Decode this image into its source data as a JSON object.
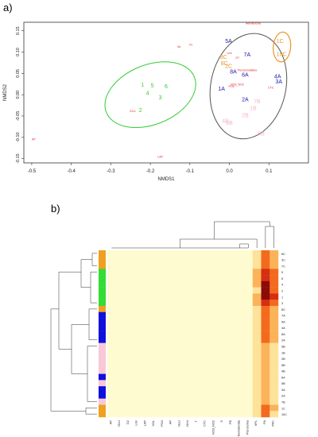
{
  "panel_labels": {
    "a": "a)",
    "b": "b)"
  },
  "chart_data": [
    {
      "type": "scatter",
      "panel": "a",
      "xlabel": "NMDS1",
      "ylabel": "NMDS2",
      "xlim": [
        -0.52,
        0.2
      ],
      "ylim": [
        -0.16,
        0.17
      ],
      "xticks": [
        "-0.5",
        "-0.4",
        "-0.3",
        "-0.2",
        "-0.1",
        "0.0",
        "0.1"
      ],
      "xtick_values": [
        -0.5,
        -0.4,
        -0.3,
        -0.2,
        -0.1,
        0.0,
        0.1
      ],
      "yticks": [
        "-0.15",
        "-0.10",
        "-0.05",
        "0.00",
        "0.05",
        "0.10",
        "0.15"
      ],
      "ytick_values": [
        -0.15,
        -0.1,
        -0.05,
        0.0,
        0.05,
        0.1,
        0.15
      ],
      "colors": {
        "green": "#33cc33",
        "blue": "#1a1aaa",
        "orange": "#e8962a",
        "pink": "#f5b5c8",
        "red": "#e02020",
        "ellipse_gray": "#555555"
      },
      "sites": [
        {
          "label": "1",
          "x": -0.22,
          "y": 0.025,
          "group": "green"
        },
        {
          "label": "5",
          "x": -0.195,
          "y": 0.023,
          "group": "green"
        },
        {
          "label": "6",
          "x": -0.16,
          "y": 0.021,
          "group": "green"
        },
        {
          "label": "4",
          "x": -0.207,
          "y": 0.005,
          "group": "green"
        },
        {
          "label": "3",
          "x": -0.175,
          "y": -0.005,
          "group": "green"
        },
        {
          "label": "2",
          "x": -0.225,
          "y": -0.035,
          "group": "green"
        },
        {
          "label": "5A",
          "x": -0.002,
          "y": 0.127,
          "group": "blue"
        },
        {
          "label": "7A",
          "x": 0.045,
          "y": 0.095,
          "group": "blue"
        },
        {
          "label": "8A",
          "x": 0.01,
          "y": 0.055,
          "group": "blue"
        },
        {
          "label": "6A",
          "x": 0.04,
          "y": 0.048,
          "group": "blue"
        },
        {
          "label": "1A",
          "x": -0.02,
          "y": 0.015,
          "group": "blue"
        },
        {
          "label": "4A",
          "x": 0.122,
          "y": 0.044,
          "group": "blue"
        },
        {
          "label": "3A",
          "x": 0.125,
          "y": 0.032,
          "group": "blue"
        },
        {
          "label": "2A",
          "x": 0.04,
          "y": -0.01,
          "group": "blue"
        },
        {
          "label": "1C",
          "x": 0.128,
          "y": 0.127,
          "group": "orange"
        },
        {
          "label": "10C",
          "x": 0.132,
          "y": 0.096,
          "group": "orange"
        },
        {
          "label": "3C",
          "x": -0.015,
          "y": 0.09,
          "group": "orange"
        },
        {
          "label": "8C",
          "x": -0.013,
          "y": 0.075,
          "group": "orange"
        },
        {
          "label": "2C",
          "x": -0.002,
          "y": 0.068,
          "group": "orange"
        },
        {
          "label": "7B",
          "x": 0.07,
          "y": -0.015,
          "group": "pink"
        },
        {
          "label": "1B",
          "x": 0.06,
          "y": -0.03,
          "group": "pink"
        },
        {
          "label": "2B",
          "x": 0.04,
          "y": -0.047,
          "group": "pink"
        },
        {
          "label": "5B",
          "x": 0.08,
          "y": -0.09,
          "group": "pink"
        },
        {
          "label": "4B",
          "x": -0.01,
          "y": -0.06,
          "group": "pink"
        },
        {
          "label": "6B",
          "x": 0.0,
          "y": -0.065,
          "group": "pink"
        }
      ],
      "env_vectors": [
        {
          "label": "Nematocida",
          "x": 0.06,
          "y": 0.165
        },
        {
          "label": "Fn",
          "x": -0.097,
          "y": 0.115
        },
        {
          "label": "Va",
          "x": -0.128,
          "y": 0.11
        },
        {
          "label": "Lrm",
          "x": -0.0,
          "y": 0.095
        },
        {
          "label": "pri",
          "x": 0.02,
          "y": 0.085
        },
        {
          "label": "Picrosomatides",
          "x": 0.045,
          "y": 0.055
        },
        {
          "label": "NO3_NO2",
          "x": 0.02,
          "y": 0.022
        },
        {
          "label": "PO4",
          "x": 0.005,
          "y": 0.017
        },
        {
          "label": "CTC",
          "x": 0.105,
          "y": 0.014
        },
        {
          "label": "GLU",
          "x": -0.245,
          "y": -0.041
        },
        {
          "label": "AP",
          "x": -0.495,
          "y": -0.107
        },
        {
          "label": "LAP",
          "x": -0.175,
          "y": -0.148
        }
      ],
      "ellipses": [
        {
          "group": "green",
          "cx": -0.2,
          "cy": 0.0,
          "rx": 0.12,
          "ry": 0.07,
          "angle": -22
        },
        {
          "group": "blue",
          "cx": 0.048,
          "cy": 0.02,
          "rx": 0.095,
          "ry": 0.125,
          "angle": 12
        },
        {
          "group": "orange",
          "cx": 0.133,
          "cy": 0.112,
          "rx": 0.022,
          "ry": 0.035,
          "angle": 5
        }
      ]
    },
    {
      "type": "heatmap",
      "panel": "b",
      "columns": [
        "AP",
        "GLU",
        "D2",
        "Lrm",
        "LAP",
        "VOL",
        "PO4",
        "AP",
        "GLU",
        "NH4",
        "T",
        "CTC",
        "NO3_NO2",
        "S",
        "FB",
        "Nematocida",
        "Picrosoma",
        "VPL",
        "PA",
        "PAC"
      ],
      "rows": [
        "8C",
        "3C",
        "7C",
        "5",
        "6",
        "4",
        "2",
        "1",
        "3",
        "8C",
        "7A",
        "5A",
        "4A",
        "8A",
        "2A",
        "3B",
        "1B",
        "2B",
        "6B",
        "4B",
        "6A",
        "5B",
        "3A",
        "2A",
        "7B",
        "1C",
        "10C"
      ],
      "row_groups": [
        "orange",
        "orange",
        "orange",
        "green",
        "green",
        "green",
        "green",
        "green",
        "green",
        "orange",
        "blue",
        "blue",
        "blue",
        "blue",
        "blue",
        "pink",
        "pink",
        "pink",
        "pink",
        "pink",
        "blue",
        "pink",
        "blue",
        "blue",
        "pink",
        "orange",
        "orange"
      ],
      "group_colors": {
        "green": "#33dd33",
        "blue": "#1010dd",
        "orange": "#f0a020",
        "pink": "#f8c8d8"
      },
      "scale": [
        "#fffbd0",
        "#fde29a",
        "#fbb35a",
        "#f36a1e",
        "#d52e10",
        "#8a0b08"
      ],
      "values_last_cols": [
        [
          1,
          3,
          2
        ],
        [
          1,
          3,
          2
        ],
        [
          1,
          3,
          2
        ],
        [
          2,
          4,
          3
        ],
        [
          2,
          4,
          3
        ],
        [
          2,
          5,
          3
        ],
        [
          1,
          5,
          3
        ],
        [
          2,
          5,
          4
        ],
        [
          2,
          4,
          3
        ],
        [
          1,
          3,
          2
        ],
        [
          1,
          3,
          2
        ],
        [
          1,
          3,
          2
        ],
        [
          1,
          3,
          2
        ],
        [
          1,
          3,
          2
        ],
        [
          1,
          3,
          2
        ],
        [
          1,
          2,
          1
        ],
        [
          1,
          2,
          1
        ],
        [
          1,
          2,
          1
        ],
        [
          1,
          2,
          1
        ],
        [
          1,
          2,
          1
        ],
        [
          1,
          2,
          1
        ],
        [
          1,
          2,
          1
        ],
        [
          1,
          2,
          1
        ],
        [
          1,
          2,
          1
        ],
        [
          1,
          2,
          1
        ],
        [
          1,
          3,
          2
        ],
        [
          1,
          3,
          1
        ]
      ]
    }
  ]
}
